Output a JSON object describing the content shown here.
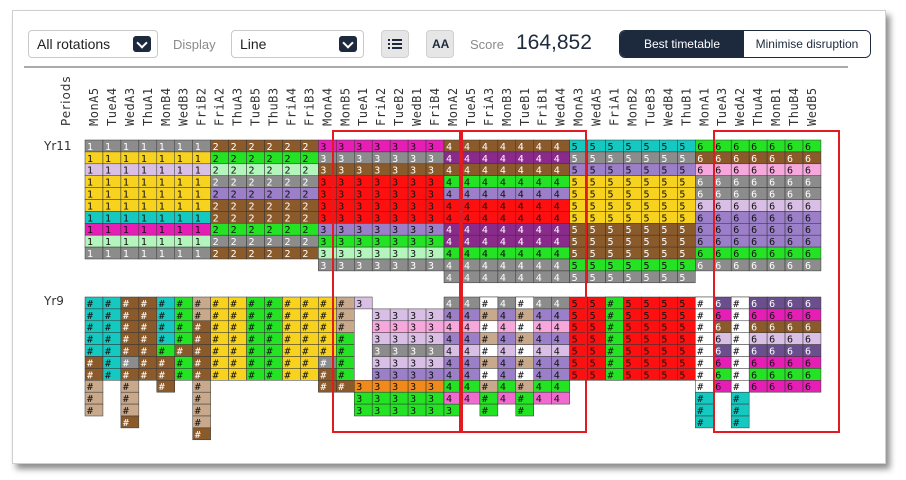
{
  "toolbar": {
    "rotation_select": "All rotations",
    "display_label": "Display",
    "display_select": "Line",
    "list_icon": "list-icon",
    "text_size_icon": "text-size-icon",
    "text_size_glyph": "AA",
    "score_label": "Score",
    "score_value": "164,852",
    "best_timetable": "Best timetable",
    "minimise_disruption": "Minimise disruption"
  },
  "grid": {
    "corner_label": "Periods",
    "periods": [
      "MonA5",
      "TueA4",
      "WedA3",
      "ThuA1",
      "MonB4",
      "WedB3",
      "FriB2",
      "FriA2",
      "ThuA3",
      "TueB5",
      "ThuB3",
      "FriA4",
      "FriB3",
      "MonA4",
      "MonB5",
      "TueA1",
      "FriA2",
      "TueB2",
      "WedB1",
      "FriB4",
      "MonA2",
      "TueA5",
      "FriA3",
      "MonB3",
      "TueB1",
      "FriB1",
      "WedA4",
      "MonA3",
      "WedA5",
      "FriA1",
      "MonB2",
      "TueB3",
      "WedB4",
      "ThuB1",
      "MonA1",
      "TueA3",
      "WedA2",
      "ThuA4",
      "MonB1",
      "ThuB4",
      "WedB5"
    ],
    "year_labels": [
      "Yr11",
      "Yr9"
    ],
    "highlight_color": "#e11b22"
  }
}
